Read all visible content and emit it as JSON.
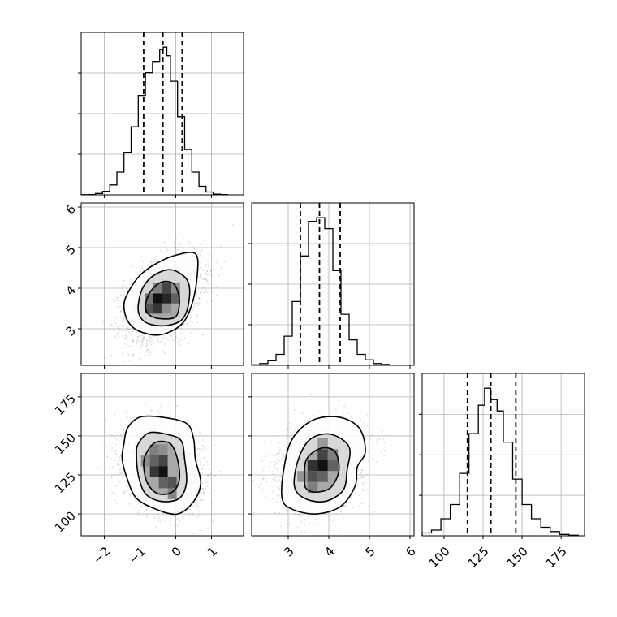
{
  "chart_data": {
    "type": "corner",
    "params": [
      {
        "range": [
          -2.65,
          1.9
        ],
        "ticks": [
          -2,
          -1,
          0,
          1
        ],
        "tick_labels": [
          "−2",
          "−1",
          "0",
          "1"
        ]
      },
      {
        "range": [
          2.1,
          6.1
        ],
        "ticks": [
          3,
          4,
          5,
          6
        ],
        "tick_labels": [
          "3",
          "4",
          "5",
          "6"
        ]
      },
      {
        "range": [
          86,
          190
        ],
        "ticks": [
          100,
          125,
          150,
          175
        ],
        "tick_labels": [
          "100",
          "125",
          "150",
          "175"
        ]
      }
    ],
    "grid": true,
    "histograms": [
      {
        "bin_edges": [
          -2.65,
          -2.45,
          -2.25,
          -2.05,
          -1.85,
          -1.65,
          -1.45,
          -1.25,
          -1.05,
          -0.85,
          -0.65,
          -0.45,
          -0.35,
          -0.25,
          -0.15,
          0.05,
          0.25,
          0.45,
          0.65,
          0.85,
          1.05,
          1.25,
          1.45
        ],
        "counts": [
          0.2,
          0.5,
          2,
          5,
          14,
          32,
          60,
          96,
          140,
          172,
          188,
          205,
          208,
          196,
          160,
          110,
          64,
          32,
          12,
          4,
          1,
          0.3
        ],
        "quantiles": [
          -0.9,
          -0.36,
          0.18
        ]
      },
      {
        "bin_edges": [
          2.1,
          2.3,
          2.5,
          2.7,
          2.9,
          3.1,
          3.3,
          3.5,
          3.7,
          3.9,
          4.1,
          4.3,
          4.5,
          4.7,
          4.9,
          5.1,
          5.3,
          5.5,
          5.7
        ],
        "counts": [
          0.5,
          2,
          5,
          12,
          32,
          70,
          120,
          158,
          162,
          150,
          104,
          56,
          28,
          12,
          6,
          2,
          1,
          0.3
        ],
        "quantiles": [
          3.3,
          3.77,
          4.28
        ]
      },
      {
        "bin_edges": [
          86,
          92,
          98,
          104,
          110,
          116,
          122,
          126,
          130,
          134,
          138,
          144,
          150,
          156,
          162,
          168,
          174,
          180,
          186
        ],
        "counts": [
          1,
          2,
          6,
          11,
          22,
          36,
          46,
          52,
          48,
          44,
          33,
          20,
          11,
          6,
          3,
          1.5,
          0.5,
          0.2
        ],
        "quantiles": [
          115,
          130,
          146
        ]
      }
    ],
    "joint": [
      {
        "x": 0,
        "y": 1,
        "center": [
          -0.36,
          3.75
        ],
        "sigma": [
          0.54,
          0.52
        ],
        "rho": 0.42,
        "contours": [
          [
            [
              -1.45,
              3.6
            ],
            [
              -1.3,
              3.95
            ],
            [
              -1.0,
              4.32
            ],
            [
              -0.6,
              4.58
            ],
            [
              -0.05,
              4.8
            ],
            [
              0.55,
              4.85
            ],
            [
              0.6,
              4.3
            ],
            [
              0.45,
              3.6
            ],
            [
              0.15,
              3.1
            ],
            [
              -0.45,
              2.85
            ],
            [
              -1.05,
              2.95
            ],
            [
              -1.35,
              3.2
            ]
          ],
          [
            [
              -1.05,
              3.6
            ],
            [
              -0.9,
              4.05
            ],
            [
              -0.55,
              4.35
            ],
            [
              -0.1,
              4.45
            ],
            [
              0.32,
              4.2
            ],
            [
              0.38,
              3.75
            ],
            [
              0.2,
              3.25
            ],
            [
              -0.25,
              3.08
            ],
            [
              -0.75,
              3.12
            ],
            [
              -1.0,
              3.3
            ]
          ],
          [
            [
              -0.85,
              3.55
            ],
            [
              -0.72,
              3.9
            ],
            [
              -0.4,
              4.15
            ],
            [
              -0.05,
              4.1
            ],
            [
              0.1,
              3.72
            ],
            [
              0.0,
              3.3
            ],
            [
              -0.45,
              3.25
            ],
            [
              -0.75,
              3.35
            ]
          ]
        ],
        "density_cells": [
          {
            "x": -0.5,
            "y": 3.75,
            "shade": "#000000"
          },
          {
            "x": -0.25,
            "y": 3.75,
            "shade": "#161616"
          },
          {
            "x": -0.5,
            "y": 3.5,
            "shade": "#2a2a2a"
          },
          {
            "x": -0.25,
            "y": 4.0,
            "shade": "#3a3a3a"
          },
          {
            "x": -0.75,
            "y": 3.5,
            "shade": "#4a4a4a"
          },
          {
            "x": 0.0,
            "y": 3.75,
            "shade": "#5a5a5a"
          },
          {
            "x": -0.75,
            "y": 3.75,
            "shade": "#6a6a6a"
          },
          {
            "x": -0.5,
            "y": 4.0,
            "shade": "#7a7a7a"
          },
          {
            "x": 0.0,
            "y": 4.0,
            "shade": "#888888"
          },
          {
            "x": -0.25,
            "y": 3.5,
            "shade": "#8a8a8a"
          }
        ]
      },
      {
        "x": 0,
        "y": 2,
        "center": [
          -0.36,
          130
        ],
        "sigma": [
          0.54,
          13
        ],
        "rho": -0.25,
        "contours": [
          [
            [
              -1.45,
              145
            ],
            [
              -1.35,
              155
            ],
            [
              -1.0,
              162
            ],
            [
              -0.4,
              162
            ],
            [
              0.3,
              158
            ],
            [
              0.5,
              148
            ],
            [
              0.55,
              135
            ],
            [
              0.7,
              120
            ],
            [
              0.5,
              108
            ],
            [
              0.05,
              100
            ],
            [
              -0.55,
              103
            ],
            [
              -1.1,
              110
            ],
            [
              -1.35,
              122
            ],
            [
              -1.5,
              135
            ]
          ],
          [
            [
              -1.05,
              145
            ],
            [
              -0.75,
              152
            ],
            [
              -0.25,
              151
            ],
            [
              0.15,
              147
            ],
            [
              0.25,
              135
            ],
            [
              0.3,
              120
            ],
            [
              0.1,
              110
            ],
            [
              -0.4,
              108
            ],
            [
              -0.85,
              113
            ],
            [
              -1.05,
              125
            ],
            [
              -1.1,
              138
            ]
          ],
          [
            [
              -0.8,
              140
            ],
            [
              -0.55,
              146
            ],
            [
              -0.15,
              145
            ],
            [
              0.05,
              135
            ],
            [
              0.1,
              122
            ],
            [
              -0.1,
              114
            ],
            [
              -0.5,
              113
            ],
            [
              -0.8,
              120
            ],
            [
              -0.9,
              132
            ]
          ]
        ],
        "density_cells": [
          {
            "x": -0.35,
            "y": 127,
            "shade": "#000000"
          },
          {
            "x": -0.6,
            "y": 127,
            "shade": "#2a2a2a"
          },
          {
            "x": -0.35,
            "y": 134,
            "shade": "#3a3a3a"
          },
          {
            "x": -0.1,
            "y": 120,
            "shade": "#4a4a4a"
          },
          {
            "x": -0.6,
            "y": 134,
            "shade": "#5a5a5a"
          },
          {
            "x": -0.35,
            "y": 120,
            "shade": "#5a5a5a"
          },
          {
            "x": -0.6,
            "y": 141,
            "shade": "#7a7a7a"
          },
          {
            "x": -0.1,
            "y": 113,
            "shade": "#7a7a7a"
          },
          {
            "x": -0.85,
            "y": 134,
            "shade": "#8a8a8a"
          },
          {
            "x": -0.35,
            "y": 141,
            "shade": "#8a8a8a"
          }
        ]
      },
      {
        "x": 1,
        "y": 2,
        "center": [
          3.77,
          130
        ],
        "sigma": [
          0.5,
          13
        ],
        "rho": 0.22,
        "contours": [
          [
            [
              2.85,
              110
            ],
            [
              2.9,
              130
            ],
            [
              3.1,
              148
            ],
            [
              3.6,
              160
            ],
            [
              4.25,
              162
            ],
            [
              4.75,
              155
            ],
            [
              4.9,
              140
            ],
            [
              4.7,
              130
            ],
            [
              4.65,
              118
            ],
            [
              4.3,
              105
            ],
            [
              3.7,
              100
            ],
            [
              3.1,
              103
            ]
          ],
          [
            [
              3.15,
              118
            ],
            [
              3.25,
              135
            ],
            [
              3.55,
              148
            ],
            [
              4.05,
              151
            ],
            [
              4.5,
              143
            ],
            [
              4.45,
              128
            ],
            [
              4.35,
              115
            ],
            [
              3.9,
              108
            ],
            [
              3.4,
              110
            ]
          ],
          [
            [
              3.4,
              122
            ],
            [
              3.45,
              135
            ],
            [
              3.8,
              142
            ],
            [
              4.15,
              140
            ],
            [
              4.25,
              128
            ],
            [
              4.05,
              117
            ],
            [
              3.7,
              114
            ],
            [
              3.45,
              116
            ]
          ]
        ],
        "density_cells": [
          {
            "x": 3.85,
            "y": 131,
            "shade": "#000000"
          },
          {
            "x": 3.6,
            "y": 131,
            "shade": "#242424"
          },
          {
            "x": 3.85,
            "y": 138,
            "shade": "#383838"
          },
          {
            "x": 3.6,
            "y": 124,
            "shade": "#484848"
          },
          {
            "x": 4.1,
            "y": 131,
            "shade": "#5a5a5a"
          },
          {
            "x": 3.85,
            "y": 124,
            "shade": "#5a5a5a"
          },
          {
            "x": 4.1,
            "y": 138,
            "shade": "#7a7a7a"
          },
          {
            "x": 3.6,
            "y": 117,
            "shade": "#7a7a7a"
          },
          {
            "x": 3.35,
            "y": 124,
            "shade": "#8a8a8a"
          },
          {
            "x": 3.85,
            "y": 145,
            "shade": "#909090"
          }
        ]
      }
    ]
  }
}
